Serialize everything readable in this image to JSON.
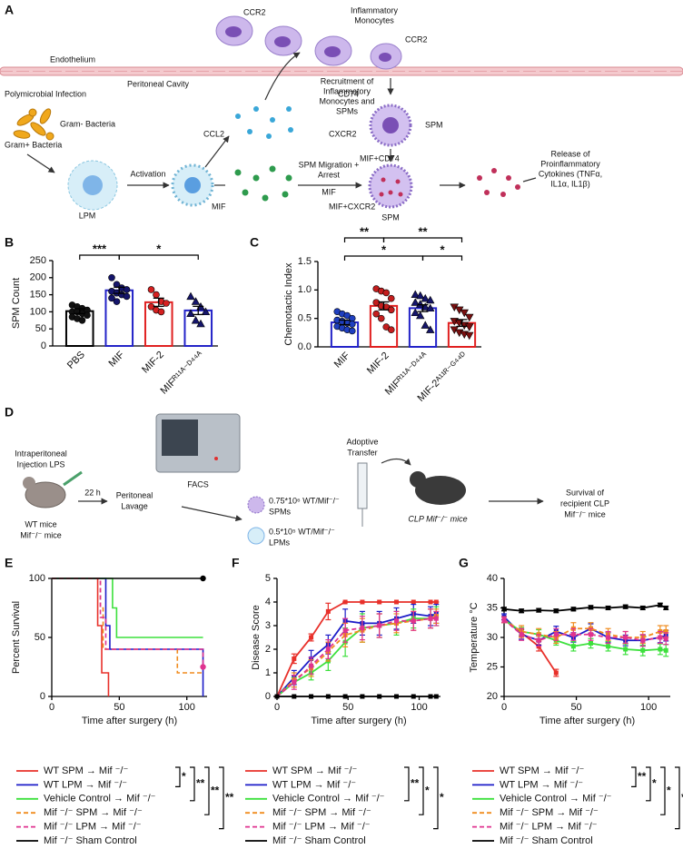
{
  "panel_a": {
    "label": "A",
    "inflammatory_monocytes": [
      "Inflammatory",
      "Monocytes"
    ],
    "ccr2": [
      "CCR2",
      "CCR2"
    ],
    "endothelium": "Endothelium",
    "peritoneal_cavity": "Peritoneal Cavity",
    "polymicrobial_infection": "Polymicrobial Infection",
    "gram_negative": "Gram- Bacteria",
    "gram_positive": "Gram+ Bacteria",
    "lpm": "LPM",
    "activation": "Activation",
    "ccl2": "CCL2",
    "recruitment": [
      "Recruitment of",
      "Inflammatory",
      "Monocytes and",
      "SPMs"
    ],
    "cd74": "CD74",
    "cxcr2": "CXCR2",
    "spm": [
      "SPM",
      "SPM"
    ],
    "mif": [
      "MIF",
      "MIF"
    ],
    "migration": [
      "SPM Migration +",
      "Arrest"
    ],
    "mif_cd74": "MIF+CD74",
    "mif_cxcr2": "MIF+CXCR2",
    "release": [
      "Release of",
      "Proinflammatory",
      "Cytokines (TNFα,",
      "IL1α, IL1β)"
    ]
  },
  "panel_d": {
    "label": "D",
    "injection": [
      "Intraperitoneal",
      "Injection LPS"
    ],
    "mice": [
      "WT mice",
      "Mif⁻/⁻ mice"
    ],
    "time": "22 h",
    "lavage": [
      "Peritoneal",
      "Lavage"
    ],
    "facs": "FACS",
    "spms": [
      "0.75*10⁶ WT/Mif⁻/⁻",
      "SPMs"
    ],
    "lpms": [
      "0.5*10⁵ WT/Mif⁻/⁻",
      "LPMs"
    ],
    "transfer": [
      "Adoptive",
      "Transfer"
    ],
    "clp": "CLP Mif⁻/⁻ mice",
    "survival": [
      "Survival of",
      "recipient CLP",
      "Mif⁻/⁻ mice"
    ]
  },
  "chart_data": [
    {
      "type": "bar",
      "panel": "B",
      "ylabel": "SPM Count",
      "categories": [
        "PBS",
        "MIF",
        "MIF-2",
        "MIFᴿ¹¹ᴬ⁻ᴰ⁴⁴ᴬ"
      ],
      "values": [
        102,
        163,
        128,
        104
      ],
      "errors": [
        7,
        9,
        12,
        12
      ],
      "colors": [
        "#000000",
        "#2323c8",
        "#e02020",
        "#2323c8"
      ],
      "points": [
        [
          120,
          115,
          110,
          105,
          100,
          100,
          95,
          90,
          85,
          80,
          75
        ],
        [
          200,
          180,
          170,
          165,
          160,
          155,
          150,
          145,
          140,
          130
        ],
        [
          165,
          150,
          130,
          125,
          115,
          105,
          100
        ],
        [
          145,
          130,
          115,
          100,
          95,
          75,
          65
        ]
      ],
      "point_colors": [
        "#111111",
        "#15156b",
        "#d42020",
        "#15156b"
      ],
      "markers": [
        "circle",
        "circle",
        "circle",
        "triangle"
      ],
      "ylim": [
        0,
        250
      ],
      "yticks": [
        0,
        50,
        100,
        150,
        200,
        250
      ],
      "significance": [
        {
          "label": "***",
          "from": 0,
          "to": 1
        },
        {
          "label": "*",
          "from": 1,
          "to": 3
        }
      ]
    },
    {
      "type": "bar",
      "panel": "C",
      "ylabel": "Chemotactic Index",
      "categories": [
        "MIF",
        "MIF-2",
        "MIFᴿ¹¹ᴬ⁻ᴰ⁴⁴ᴬ",
        "MIF-2ᴬ¹¹ᴿ⁻ᴳ⁴⁴ᴰ"
      ],
      "values": [
        0.43,
        0.72,
        0.68,
        0.42
      ],
      "errors": [
        0.04,
        0.07,
        0.06,
        0.06
      ],
      "colors": [
        "#2323c8",
        "#e02020",
        "#2323c8",
        "#e02020"
      ],
      "points": [
        [
          0.62,
          0.58,
          0.55,
          0.5,
          0.47,
          0.45,
          0.42,
          0.4,
          0.36,
          0.33,
          0.3,
          0.28
        ],
        [
          1.02,
          0.98,
          0.95,
          0.85,
          0.78,
          0.72,
          0.7,
          0.65,
          0.58,
          0.5,
          0.35,
          0.3
        ],
        [
          0.92,
          0.9,
          0.85,
          0.82,
          0.78,
          0.75,
          0.7,
          0.68,
          0.6,
          0.55,
          0.38,
          0.3
        ],
        [
          0.7,
          0.65,
          0.6,
          0.52,
          0.45,
          0.42,
          0.38,
          0.35,
          0.3,
          0.25,
          0.22,
          0.2
        ]
      ],
      "point_colors": [
        "#1f3fbf",
        "#c41e1e",
        "#15156b",
        "#7a1010"
      ],
      "markers": [
        "circle",
        "circle",
        "triangle",
        "triangle-down"
      ],
      "ylim": [
        0,
        1.5
      ],
      "yticks": [
        {
          "value": 0,
          "label": "0.0"
        },
        0.5,
        {
          "value": 1,
          "label": "1.0"
        },
        1.5
      ],
      "significance": [
        {
          "label": "**",
          "from": 0,
          "to": 1
        },
        {
          "label": "**",
          "from": 1,
          "to": 3
        },
        {
          "label": "*",
          "from": 0,
          "to": 2
        },
        {
          "label": "*",
          "from": 2,
          "to": 3
        }
      ]
    },
    {
      "type": "step",
      "panel": "E",
      "ylabel": "Percent Survival",
      "xlabel": "Time after surgery (h)",
      "xlim": [
        0,
        115
      ],
      "xticks": [
        0,
        50,
        100
      ],
      "ylim": [
        0,
        100
      ],
      "yticks": [
        0,
        50,
        100
      ],
      "series": [
        {
          "name": "WT SPM → Mif ⁻/⁻",
          "color": "#e8302a",
          "dashed": false,
          "end_marker": false,
          "x": [
            0,
            34,
            37,
            42
          ],
          "values": [
            100,
            60,
            20,
            0
          ]
        },
        {
          "name": "WT LPM → Mif ⁻/⁻",
          "color": "#1c1cc8",
          "dashed": false,
          "end_marker": false,
          "x": [
            0,
            40,
            43,
            112
          ],
          "values": [
            100,
            60,
            40,
            0
          ]
        },
        {
          "name": "Vehicle Control → Mif ⁻/⁻",
          "color": "#3de03d",
          "dashed": false,
          "end_marker": false,
          "x": [
            0,
            45,
            48,
            112
          ],
          "values": [
            100,
            75,
            50,
            50
          ]
        },
        {
          "name": "Mif ⁻/⁻ SPM → Mif ⁻/⁻",
          "color": "#f08c1e",
          "dashed": true,
          "end_marker": false,
          "x": [
            0,
            36,
            38,
            93,
            112
          ],
          "values": [
            100,
            75,
            40,
            20,
            20
          ]
        },
        {
          "name": "Mif ⁻/⁻ LPM → Mif ⁻/⁻",
          "color": "#e0338f",
          "dashed": true,
          "end_marker": true,
          "x": [
            0,
            36,
            40,
            112
          ],
          "values": [
            100,
            67,
            40,
            25
          ]
        },
        {
          "name": "Mif ⁻/⁻ Sham Control",
          "color": "#000000",
          "dashed": false,
          "end_marker": true,
          "x": [
            0,
            112
          ],
          "values": [
            100,
            100
          ]
        }
      ],
      "legend_significance": [
        {
          "label": "*",
          "from": 0,
          "to": 1
        },
        {
          "label": "**",
          "from": 0,
          "to": 2
        },
        {
          "label": "**",
          "from": 0,
          "to": 3
        },
        {
          "label": "**",
          "from": 0,
          "to": 4
        }
      ]
    },
    {
      "type": "line",
      "panel": "F",
      "ylabel": "Disease Score",
      "xlabel": "Time after surgery (h)",
      "xlim": [
        0,
        115
      ],
      "xticks": [
        0,
        50,
        100
      ],
      "ylim": [
        0,
        5
      ],
      "yticks": [
        0,
        1,
        2,
        3,
        4,
        5
      ],
      "series": [
        {
          "name": "WT SPM → Mif ⁻/⁻",
          "color": "#e8302a",
          "dashed": false,
          "x": [
            0,
            12,
            24,
            36,
            48,
            60,
            72,
            84,
            96,
            108,
            112
          ],
          "values": [
            0,
            1.6,
            2.5,
            3.6,
            4,
            4,
            4,
            4,
            4,
            4,
            4
          ],
          "errors": [
            0,
            0.2,
            0.15,
            0.35,
            0,
            0,
            0,
            0,
            0,
            0,
            0
          ]
        },
        {
          "name": "WT LPM → Mif ⁻/⁻",
          "color": "#1c1cc8",
          "dashed": false,
          "x": [
            0,
            12,
            24,
            36,
            48,
            60,
            72,
            84,
            96,
            108,
            112
          ],
          "values": [
            0,
            0.8,
            1.6,
            2.2,
            3.2,
            3.1,
            3.1,
            3.3,
            3.5,
            3.4,
            3.5
          ],
          "errors": [
            0,
            0.3,
            0.35,
            0.4,
            0.5,
            0.5,
            0.5,
            0.45,
            0.4,
            0.4,
            0.4
          ]
        },
        {
          "name": "Vehicle Control → Mif ⁻/⁻",
          "color": "#3de03d",
          "dashed": false,
          "x": [
            0,
            12,
            24,
            36,
            48,
            60,
            72,
            84,
            96,
            108,
            112
          ],
          "values": [
            0,
            0.6,
            1,
            1.5,
            2.3,
            2.9,
            3,
            3.1,
            3.3,
            3.3,
            3.4
          ],
          "errors": [
            0,
            0.2,
            0.3,
            0.4,
            0.6,
            0.6,
            0.5,
            0.5,
            0.4,
            0.4,
            0.4
          ]
        },
        {
          "name": "Mif ⁻/⁻ SPM → Mif ⁻/⁻",
          "color": "#f08c1e",
          "dashed": true,
          "x": [
            0,
            12,
            24,
            36,
            48,
            60,
            72,
            84,
            96,
            108,
            112
          ],
          "values": [
            0,
            0.7,
            1.2,
            1.9,
            2.6,
            2.8,
            3,
            3.1,
            3.2,
            3.3,
            3.4
          ],
          "errors": [
            0,
            0.3,
            0.35,
            0.4,
            0.5,
            0.5,
            0.5,
            0.4,
            0.4,
            0.4,
            0.3
          ]
        },
        {
          "name": "Mif ⁻/⁻ LPM → Mif ⁻/⁻",
          "color": "#e0338f",
          "dashed": true,
          "x": [
            0,
            12,
            24,
            36,
            48,
            60,
            72,
            84,
            96,
            108,
            112
          ],
          "values": [
            0,
            0.6,
            1.3,
            2,
            2.8,
            2.9,
            3,
            3.2,
            3.2,
            3.3,
            3.3
          ],
          "errors": [
            0,
            0.3,
            0.35,
            0.4,
            0.5,
            0.5,
            0.5,
            0.4,
            0.4,
            0.4,
            0.3
          ]
        },
        {
          "name": "Mif ⁻/⁻ Sham Control",
          "color": "#000000",
          "dashed": false,
          "x": [
            0,
            12,
            24,
            36,
            48,
            60,
            72,
            84,
            96,
            108,
            112
          ],
          "values": [
            0,
            0,
            0,
            0,
            0,
            0,
            0,
            0,
            0,
            0,
            0
          ],
          "errors": [
            0,
            0,
            0,
            0,
            0,
            0,
            0,
            0,
            0,
            0,
            0
          ]
        }
      ],
      "legend_significance": [
        {
          "label": "**",
          "from": 0,
          "to": 2
        },
        {
          "label": "*",
          "from": 0,
          "to": 3
        },
        {
          "label": "*",
          "from": 0,
          "to": 4
        }
      ]
    },
    {
      "type": "line",
      "panel": "G",
      "ylabel": "Temperature °C",
      "xlabel": "Time after surgery (h)",
      "xlim": [
        0,
        115
      ],
      "xticks": [
        0,
        50,
        100
      ],
      "ylim": [
        20,
        40
      ],
      "yticks": [
        20,
        25,
        30,
        35,
        40
      ],
      "series": [
        {
          "name": "WT SPM → Mif ⁻/⁻",
          "color": "#e8302a",
          "dashed": false,
          "x": [
            0,
            12,
            24,
            36
          ],
          "values": [
            33,
            30.8,
            28.5,
            24
          ],
          "errors": [
            0.5,
            0.6,
            0.8,
            0.6
          ]
        },
        {
          "name": "WT LPM → Mif ⁻/⁻",
          "color": "#1c1cc8",
          "dashed": false,
          "x": [
            0,
            12,
            24,
            36,
            48,
            60,
            72,
            84,
            96,
            108,
            112
          ],
          "values": [
            33.5,
            30.5,
            29.5,
            31,
            30,
            31.5,
            30,
            29.5,
            29.5,
            30,
            30.3
          ],
          "errors": [
            0.5,
            0.8,
            0.8,
            0.9,
            0.8,
            0.8,
            0.8,
            0.9,
            0.9,
            0.9,
            0.9
          ]
        },
        {
          "name": "Vehicle Control → Mif ⁻/⁻",
          "color": "#3de03d",
          "dashed": false,
          "x": [
            0,
            12,
            24,
            36,
            48,
            60,
            72,
            84,
            96,
            108,
            112
          ],
          "values": [
            33,
            31,
            30.5,
            29.5,
            28.5,
            29,
            28.5,
            28,
            27.8,
            28,
            27.8
          ],
          "errors": [
            0.5,
            0.7,
            0.8,
            0.8,
            0.8,
            0.8,
            0.8,
            0.9,
            0.9,
            0.9,
            1
          ]
        },
        {
          "name": "Mif ⁻/⁻ SPM → Mif ⁻/⁻",
          "color": "#f08c1e",
          "dashed": true,
          "x": [
            0,
            12,
            24,
            36,
            48,
            60,
            72,
            84,
            96,
            108,
            112
          ],
          "values": [
            33,
            31,
            30.5,
            30,
            31.5,
            31.5,
            30.5,
            30,
            30,
            31,
            31
          ],
          "errors": [
            0.5,
            1,
            1,
            1,
            1,
            1,
            1,
            1,
            1,
            1,
            1
          ]
        },
        {
          "name": "Mif ⁻/⁻ LPM → Mif ⁻/⁻",
          "color": "#e0338f",
          "dashed": true,
          "x": [
            0,
            12,
            24,
            36,
            48,
            60,
            72,
            84,
            96,
            108,
            112
          ],
          "values": [
            33,
            30.5,
            29.5,
            30.5,
            30.5,
            30.5,
            30,
            30,
            29.5,
            30,
            29.8
          ],
          "errors": [
            0.5,
            1,
            1,
            1,
            1,
            1,
            1,
            1,
            1,
            1,
            1
          ]
        },
        {
          "name": "Mif ⁻/⁻ Sham Control",
          "color": "#000000",
          "dashed": false,
          "x": [
            0,
            12,
            24,
            36,
            48,
            60,
            72,
            84,
            96,
            108,
            112
          ],
          "values": [
            34.8,
            34.5,
            34.6,
            34.5,
            34.8,
            35.1,
            35,
            35.2,
            35,
            35.5,
            35
          ],
          "errors": [
            0.3,
            0.3,
            0.3,
            0.3,
            0.3,
            0.3,
            0.3,
            0.3,
            0.3,
            0.3,
            0.3
          ]
        }
      ],
      "legend_significance": [
        {
          "label": "**",
          "from": 0,
          "to": 1
        },
        {
          "label": "*",
          "from": 0,
          "to": 2
        },
        {
          "label": "*",
          "from": 0,
          "to": 3
        },
        {
          "label": "*",
          "from": 0,
          "to": 4
        }
      ]
    }
  ]
}
